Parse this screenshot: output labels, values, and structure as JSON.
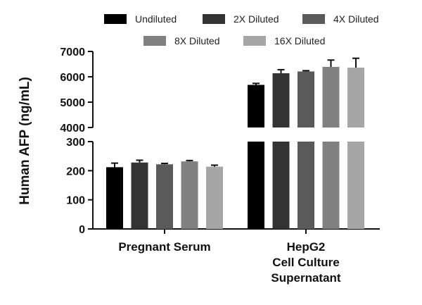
{
  "chart_data": {
    "type": "bar",
    "ylabel": "Human AFP (ng/mL)",
    "xlabel": "",
    "categories": [
      "Pregnant Serum",
      "HepG2\nCell Culture\nSupernatant"
    ],
    "series": [
      {
        "name": "Undiluted",
        "color": "#000000",
        "values": [
          212,
          5680
        ],
        "errors": [
          14,
          60
        ]
      },
      {
        "name": "2X Diluted",
        "color": "#333333",
        "values": [
          228,
          6140
        ],
        "errors": [
          8,
          140
        ]
      },
      {
        "name": "4X Diluted",
        "color": "#5a5a5a",
        "values": [
          222,
          6210
        ],
        "errors": [
          3,
          30
        ]
      },
      {
        "name": "8X Diluted",
        "color": "#808080",
        "values": [
          232,
          6390
        ],
        "errors": [
          3,
          270
        ]
      },
      {
        "name": "16X Diluted",
        "color": "#a6a6a6",
        "values": [
          214,
          6360
        ],
        "errors": [
          5,
          370
        ]
      }
    ],
    "y_axis_segments": [
      {
        "range": [
          0,
          300
        ],
        "ticks": [
          0,
          100,
          200,
          300
        ]
      },
      {
        "range": [
          4000,
          7000
        ],
        "ticks": [
          4000,
          5000,
          6000,
          7000
        ]
      }
    ],
    "legend_position": "top",
    "grid": false
  }
}
